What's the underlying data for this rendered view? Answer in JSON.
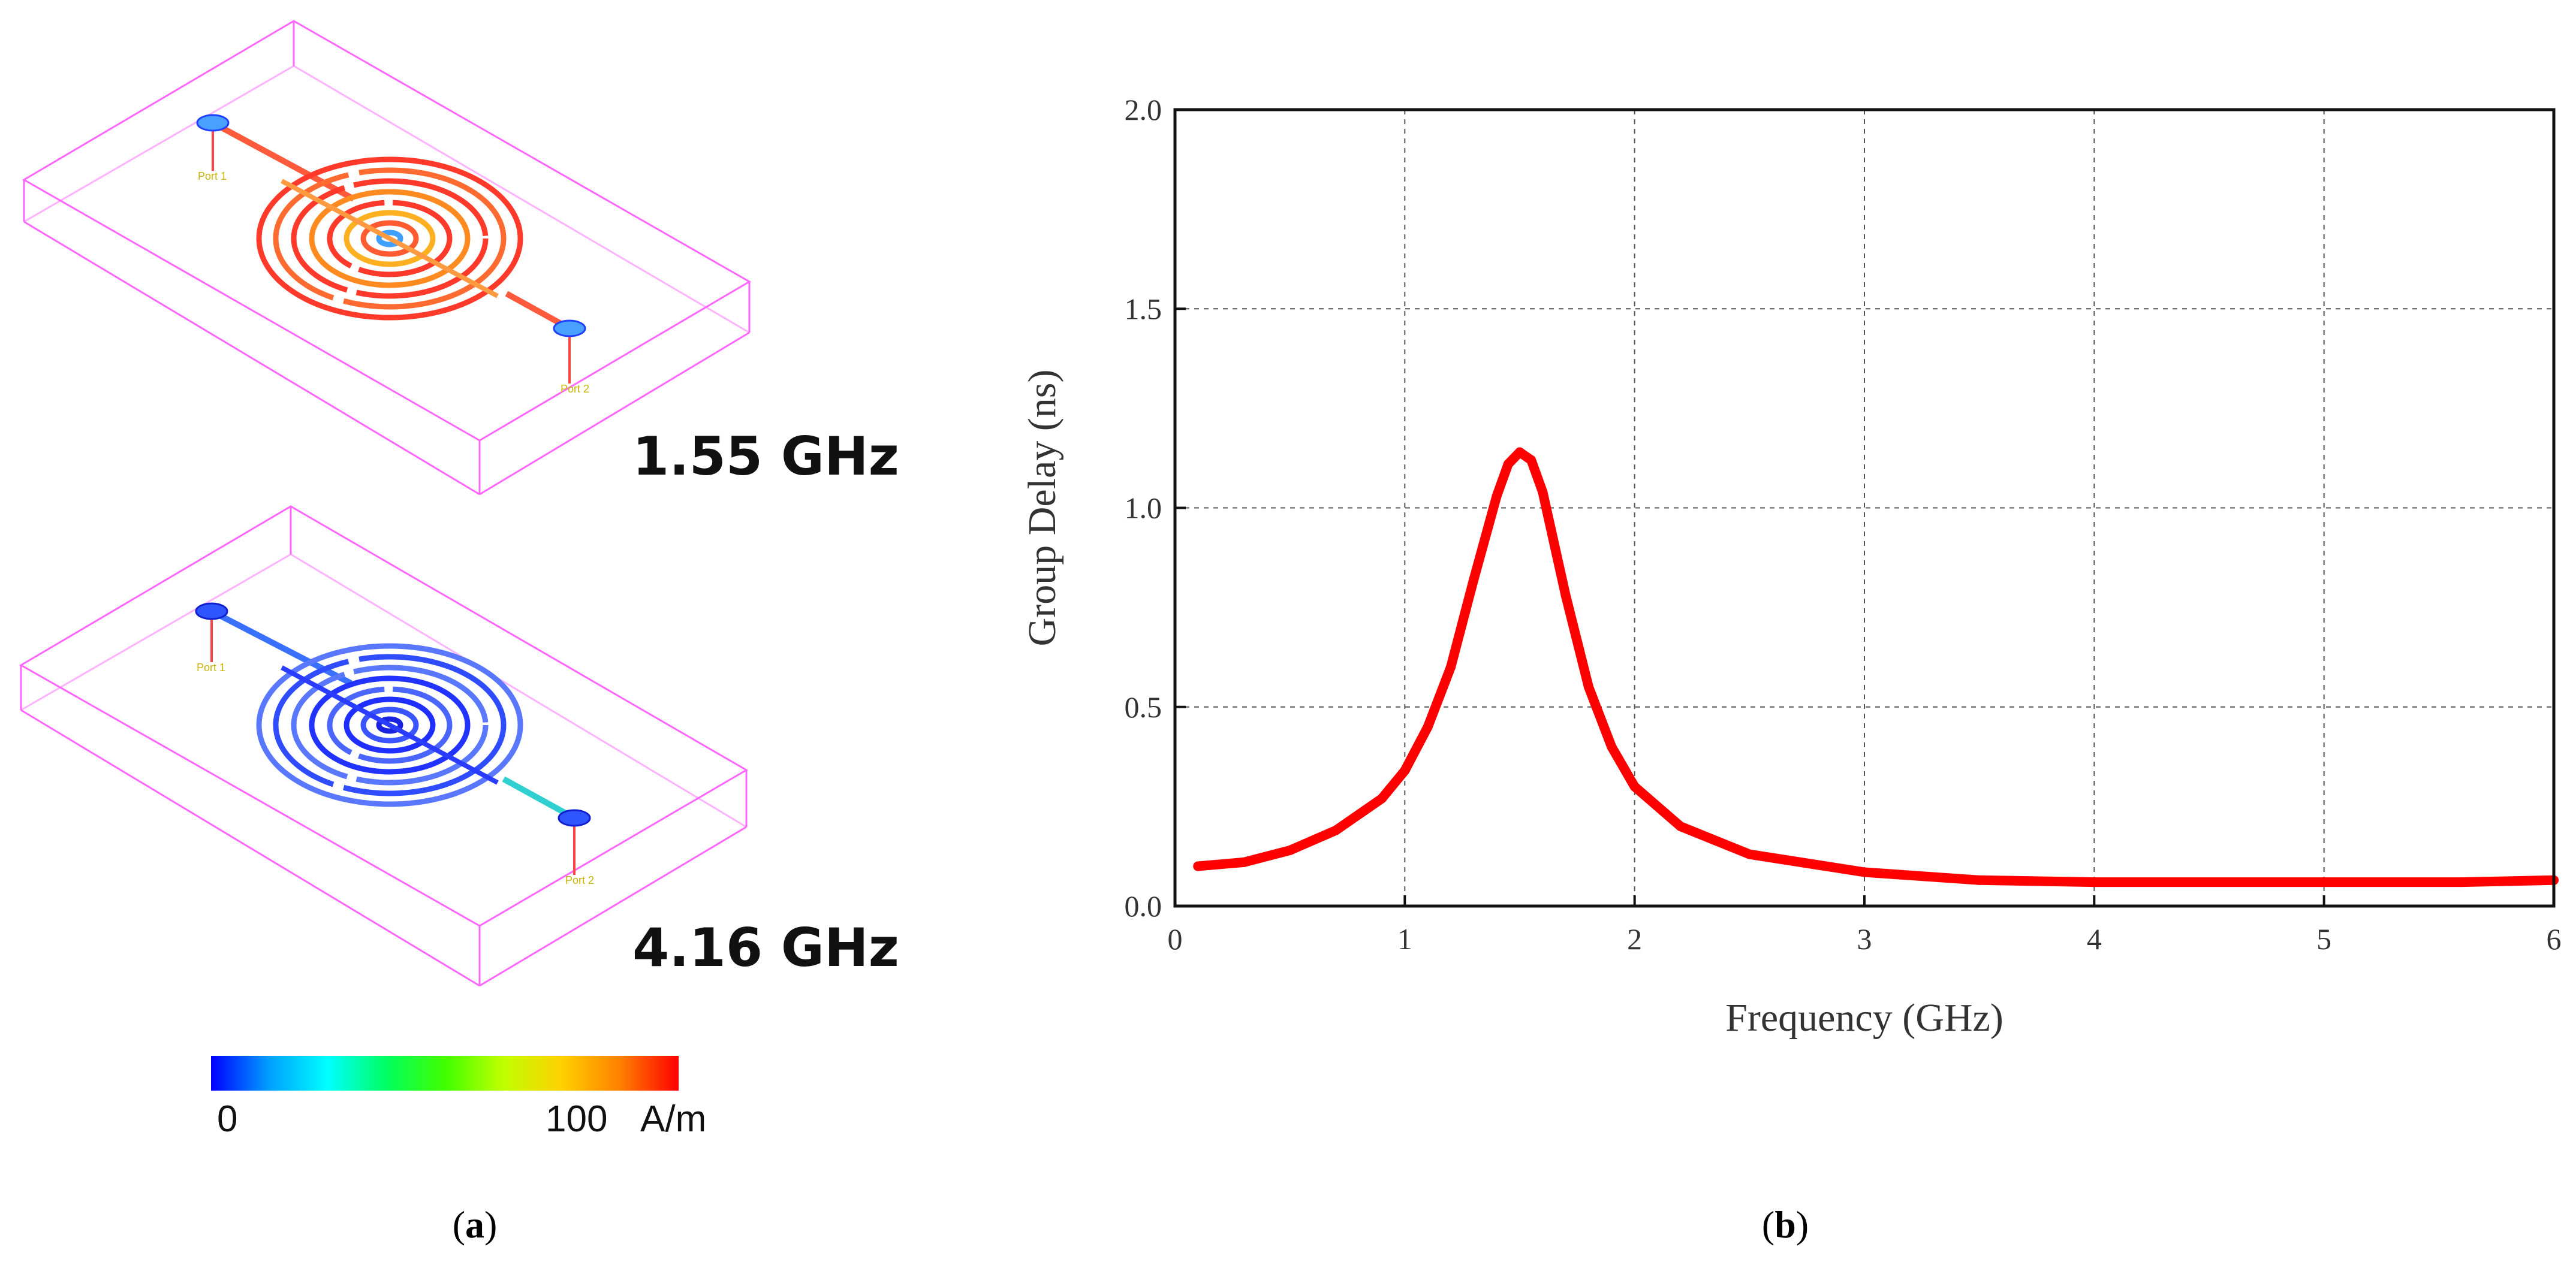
{
  "panel_a": {
    "label": "(a)",
    "label_letter": "a",
    "views": [
      {
        "frequency_label": "1.55 GHz",
        "port1_label": "Port 1",
        "port2_label": "Port 2",
        "color_scheme": "hot"
      },
      {
        "frequency_label": "4.16 GHz",
        "port1_label": "Port 1",
        "port2_label": "Port 2",
        "color_scheme": "cold"
      }
    ],
    "colorbar": {
      "min_label": "0",
      "max_label": "100",
      "unit": "A/m",
      "colors": [
        "#0000ff",
        "#00a0ff",
        "#00ffff",
        "#00ff60",
        "#40ff00",
        "#c0ff00",
        "#ffd000",
        "#ff8000",
        "#ff0000"
      ]
    },
    "box_color": "#ff66ff"
  },
  "panel_b": {
    "label": "(b)",
    "label_letter": "b"
  },
  "chart_data": {
    "type": "line",
    "title": "",
    "xlabel": "Frequency (GHz)",
    "ylabel": "Group Delay (ns)",
    "xlim": [
      0,
      6
    ],
    "ylim": [
      0,
      2.0
    ],
    "xticks": [
      0,
      1,
      2,
      3,
      4,
      5,
      6
    ],
    "yticks": [
      0.0,
      0.5,
      1.0,
      1.5,
      2.0
    ],
    "xtick_labels": [
      "0",
      "1",
      "2",
      "3",
      "4",
      "5",
      "6"
    ],
    "ytick_labels": [
      "0.0",
      "0.5",
      "1.0",
      "1.5",
      "2.0"
    ],
    "grid": true,
    "line_color": "#ff0000",
    "series": [
      {
        "name": "Group Delay",
        "x": [
          0.1,
          0.3,
          0.5,
          0.7,
          0.9,
          1.0,
          1.1,
          1.2,
          1.3,
          1.4,
          1.45,
          1.5,
          1.55,
          1.6,
          1.7,
          1.8,
          1.9,
          2.0,
          2.2,
          2.5,
          3.0,
          3.5,
          4.0,
          5.0,
          5.6,
          6.0
        ],
        "y": [
          0.1,
          0.11,
          0.14,
          0.19,
          0.27,
          0.34,
          0.45,
          0.6,
          0.82,
          1.03,
          1.11,
          1.14,
          1.12,
          1.04,
          0.78,
          0.55,
          0.4,
          0.3,
          0.2,
          0.13,
          0.085,
          0.065,
          0.06,
          0.06,
          0.06,
          0.065
        ]
      }
    ]
  }
}
